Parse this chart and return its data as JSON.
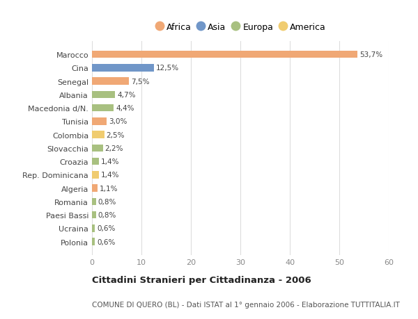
{
  "categories": [
    "Marocco",
    "Cina",
    "Senegal",
    "Albania",
    "Macedonia d/N.",
    "Tunisia",
    "Colombia",
    "Slovacchia",
    "Croazia",
    "Rep. Dominicana",
    "Algeria",
    "Romania",
    "Paesi Bassi",
    "Ucraina",
    "Polonia"
  ],
  "values": [
    53.7,
    12.5,
    7.5,
    4.7,
    4.4,
    3.0,
    2.5,
    2.2,
    1.4,
    1.4,
    1.1,
    0.8,
    0.8,
    0.6,
    0.6
  ],
  "labels": [
    "53,7%",
    "12,5%",
    "7,5%",
    "4,7%",
    "4,4%",
    "3,0%",
    "2,5%",
    "2,2%",
    "1,4%",
    "1,4%",
    "1,1%",
    "0,8%",
    "0,8%",
    "0,6%",
    "0,6%"
  ],
  "continent": [
    "Africa",
    "Asia",
    "Africa",
    "Europa",
    "Europa",
    "Africa",
    "America",
    "Europa",
    "Europa",
    "America",
    "Africa",
    "Europa",
    "Europa",
    "Europa",
    "Europa"
  ],
  "colors": {
    "Africa": "#F0A875",
    "Asia": "#7096C8",
    "Europa": "#A8C080",
    "America": "#F0CC70"
  },
  "legend_order": [
    "Africa",
    "Asia",
    "Europa",
    "America"
  ],
  "xlim": [
    0,
    60
  ],
  "xticks": [
    0,
    10,
    20,
    30,
    40,
    50,
    60
  ],
  "title": "Cittadini Stranieri per Cittadinanza - 2006",
  "subtitle": "COMUNE DI QUERO (BL) - Dati ISTAT al 1° gennaio 2006 - Elaborazione TUTTITALIA.IT",
  "background_color": "#FFFFFF",
  "grid_color": "#DDDDDD",
  "bar_height": 0.55
}
